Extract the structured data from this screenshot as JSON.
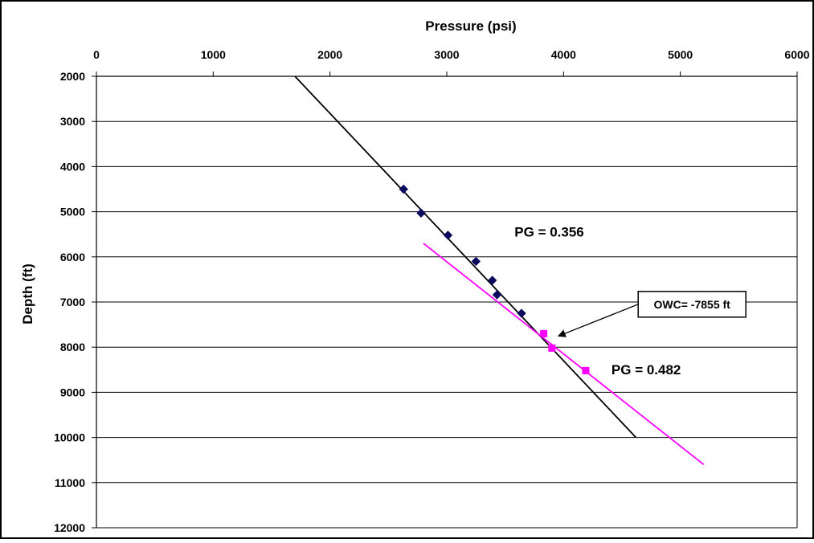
{
  "chart_data": {
    "type": "scatter",
    "xlabel": "Pressure (psi)",
    "ylabel": "Depth (ft)",
    "xlim": [
      0,
      6000
    ],
    "ylim": [
      2000,
      12000
    ],
    "x_ticks": [
      0,
      1000,
      2000,
      3000,
      4000,
      5000,
      6000
    ],
    "y_ticks": [
      2000,
      3000,
      4000,
      5000,
      6000,
      7000,
      8000,
      9000,
      10000,
      11000,
      12000
    ],
    "y_reversed": true,
    "x_axis_position": "top",
    "grid": "horizontal",
    "series": [
      {
        "marker": "diamond",
        "color": "#0a0a5e",
        "points": [
          {
            "x": 2630,
            "y": 4500
          },
          {
            "x": 2780,
            "y": 5030
          },
          {
            "x": 3010,
            "y": 5520
          },
          {
            "x": 3250,
            "y": 6100
          },
          {
            "x": 3390,
            "y": 6520
          },
          {
            "x": 3430,
            "y": 6840
          },
          {
            "x": 3640,
            "y": 7250
          }
        ]
      },
      {
        "marker": "square",
        "color": "#ff00ff",
        "points": [
          {
            "x": 3830,
            "y": 7700
          },
          {
            "x": 3900,
            "y": 8020
          },
          {
            "x": 4190,
            "y": 8520
          }
        ]
      }
    ],
    "trendlines": [
      {
        "color": "#000000",
        "from": {
          "x": 1700,
          "y": 2000
        },
        "to": {
          "x": 4620,
          "y": 10000
        }
      },
      {
        "color": "#ff00ff",
        "from": {
          "x": 2800,
          "y": 5700
        },
        "to": {
          "x": 5200,
          "y": 10600
        }
      }
    ],
    "annotations": [
      {
        "text": "PG = 0.356",
        "x": 3580,
        "y": 5550
      },
      {
        "text": "PG = 0.482",
        "x": 4410,
        "y": 8600
      },
      {
        "text": "OWC= -7855 ft",
        "box_x": 5100,
        "box_y": 7050,
        "arrow_to": {
          "x": 3920,
          "y": 7855
        }
      }
    ]
  }
}
